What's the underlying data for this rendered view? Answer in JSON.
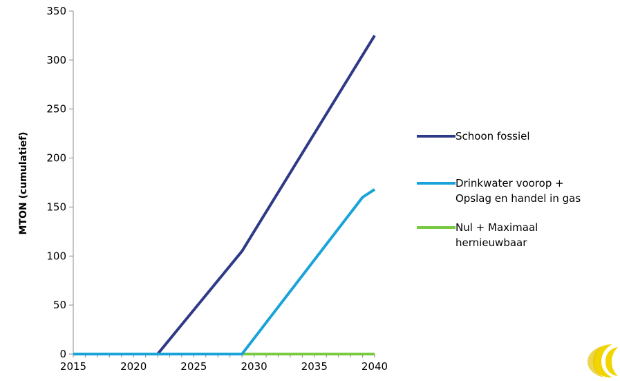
{
  "chart_data": {
    "type": "line",
    "title": "",
    "xlabel": "",
    "ylabel": "MTON (cumulatief)",
    "xlim": [
      2015,
      2040
    ],
    "ylim": [
      0,
      350
    ],
    "x_ticks": [
      "2015",
      "2020",
      "2025",
      "2030",
      "2035",
      "2040"
    ],
    "y_ticks": [
      "0",
      "50",
      "100",
      "150",
      "200",
      "250",
      "300",
      "350"
    ],
    "grid": false,
    "legend_position": "right",
    "series": [
      {
        "name": "Schoon fossiel",
        "color": "#2e3a87",
        "points": [
          [
            2015,
            0
          ],
          [
            2022,
            0
          ],
          [
            2029,
            105
          ],
          [
            2040,
            325
          ]
        ]
      },
      {
        "name": "Drinkwater voorop +\nOpslag en handel in gas",
        "color": "#19a3d8",
        "points": [
          [
            2015,
            0
          ],
          [
            2029,
            0
          ],
          [
            2039,
            160
          ],
          [
            2040,
            168
          ]
        ]
      },
      {
        "name": "Nul + Maximaal\nhernieuwbaar",
        "color": "#7ac943",
        "points": [
          [
            2015,
            0
          ],
          [
            2040,
            0
          ]
        ]
      }
    ]
  },
  "logo": {
    "name": "yellow-logo",
    "color": "#f2d500"
  }
}
